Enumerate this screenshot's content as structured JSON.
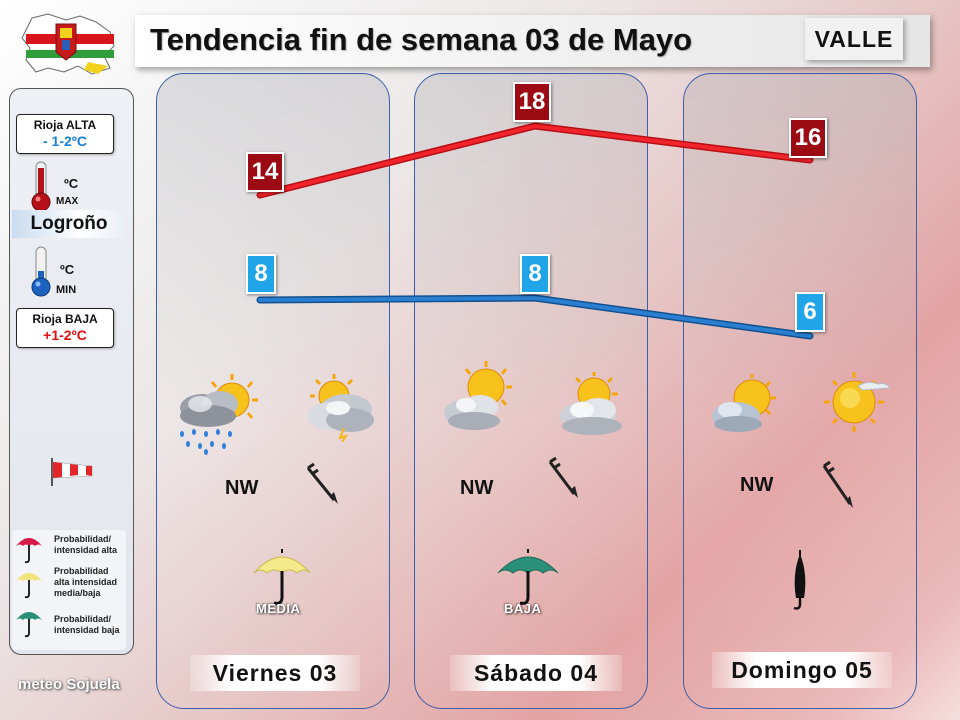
{
  "header": {
    "title": "Tendencia fin de semana 03 de Mayo",
    "zone": "VALLE"
  },
  "sidebar": {
    "ref_high": {
      "label": "Rioja ALTA",
      "value": "- 1-2ºC",
      "color": "#1a7fd6"
    },
    "ref_low": {
      "label": "Rioja BAJA",
      "value": "+1-2ºC",
      "color": "#e01010"
    },
    "city": "Logroño",
    "max_unit": "ºC",
    "max_label": "MAX",
    "min_unit": "ºC",
    "min_label": "MIN",
    "legend": [
      {
        "color": "#d81b48",
        "text": "Probabilidad/ intensidad alta",
        "tag": "ALTA"
      },
      {
        "color": "#f2e37a",
        "text": "Probabilidad alta intensidad media/baja",
        "tag": "MEDIA"
      },
      {
        "color": "#2a9178",
        "text": "Probabilidad/ intensidad baja",
        "tag": "BAJA"
      }
    ],
    "brand": "meteo Sojuela"
  },
  "colors": {
    "max_line": "#e8141b",
    "min_line": "#1e6fc4",
    "max_box": "#9c0b14",
    "min_box": "#1fa5e8"
  },
  "days": [
    {
      "name": "Viernes 03",
      "max": "14",
      "min": "8",
      "wind": "NW",
      "icons": [
        "cloud-sun-rain-icon",
        "cloud-sun-storm-icon"
      ],
      "rain_prob": "MEDIA",
      "umbrella_color": "#f4ea8c"
    },
    {
      "name": "Sábado 04",
      "max": "18",
      "min": "8",
      "wind": "NW",
      "icons": [
        "sun-cloud-icon",
        "sun-cloud-icon"
      ],
      "rain_prob": "BAJA",
      "umbrella_color": "#2a9178"
    },
    {
      "name": "Domingo 05",
      "max": "16",
      "min": "6",
      "wind": "NW",
      "icons": [
        "cloud-sun-icon",
        "sun-haze-icon"
      ],
      "rain_prob": "",
      "umbrella_color": "#111111"
    }
  ]
}
